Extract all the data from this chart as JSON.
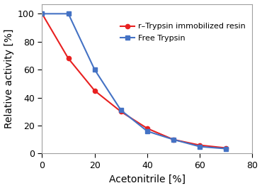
{
  "red_x": [
    0,
    10,
    20,
    30,
    40,
    50,
    60,
    70
  ],
  "red_y": [
    100,
    68,
    45,
    30,
    18,
    10,
    6,
    4
  ],
  "blue_x": [
    0,
    10,
    20,
    30,
    40,
    50,
    60,
    70
  ],
  "blue_y": [
    100,
    100,
    60,
    31,
    16,
    10,
    5,
    3.5
  ],
  "red_label": "r–Trypsin immobilized resin",
  "blue_label": "Free Trypsin",
  "xlabel": "Acetonitrile [%]",
  "ylabel": "Relative activity [%]",
  "xlim": [
    0,
    80
  ],
  "ylim": [
    0,
    107
  ],
  "xticks": [
    0,
    20,
    40,
    60,
    80
  ],
  "yticks": [
    0,
    20,
    40,
    60,
    80,
    100
  ],
  "red_color": "#e82020",
  "blue_color": "#4472c4",
  "spine_color": "#a0a0a0",
  "bg_color": "#ffffff",
  "legend_fontsize": 8,
  "axis_label_fontsize": 10,
  "tick_fontsize": 9
}
